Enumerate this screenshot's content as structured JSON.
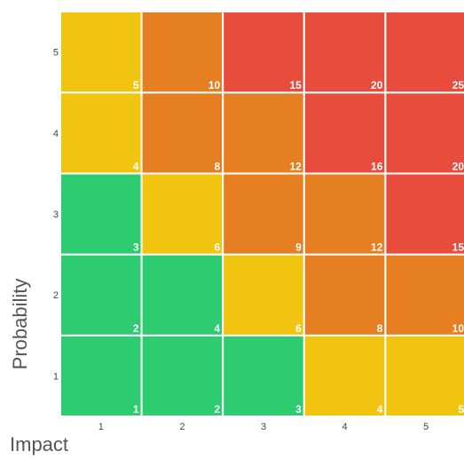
{
  "chart_data": {
    "type": "heatmap",
    "title": "",
    "xlabel": "Impact",
    "ylabel": "Probability",
    "x": [
      1,
      2,
      3,
      4,
      5
    ],
    "y": [
      1,
      2,
      3,
      4,
      5
    ],
    "x_tick_labels": [
      "1",
      "2",
      "3",
      "4",
      "5"
    ],
    "y_tick_labels": [
      "1",
      "2",
      "3",
      "4",
      "5"
    ],
    "values": [
      [
        1,
        2,
        3,
        4,
        5
      ],
      [
        2,
        4,
        6,
        8,
        10
      ],
      [
        3,
        6,
        9,
        12,
        15
      ],
      [
        4,
        8,
        12,
        16,
        20
      ],
      [
        5,
        10,
        15,
        20,
        25
      ]
    ],
    "colors": {
      "low": "#2ecc71",
      "medium": "#f1c40f",
      "high": "#e67e22",
      "critical": "#e74c3c"
    },
    "cell_levels": [
      [
        "low",
        "low",
        "low",
        "medium",
        "medium"
      ],
      [
        "low",
        "low",
        "medium",
        "high",
        "high"
      ],
      [
        "low",
        "medium",
        "high",
        "high",
        "critical"
      ],
      [
        "medium",
        "high",
        "high",
        "critical",
        "critical"
      ],
      [
        "medium",
        "high",
        "critical",
        "critical",
        "critical"
      ]
    ],
    "grid": false,
    "legend": "none"
  }
}
